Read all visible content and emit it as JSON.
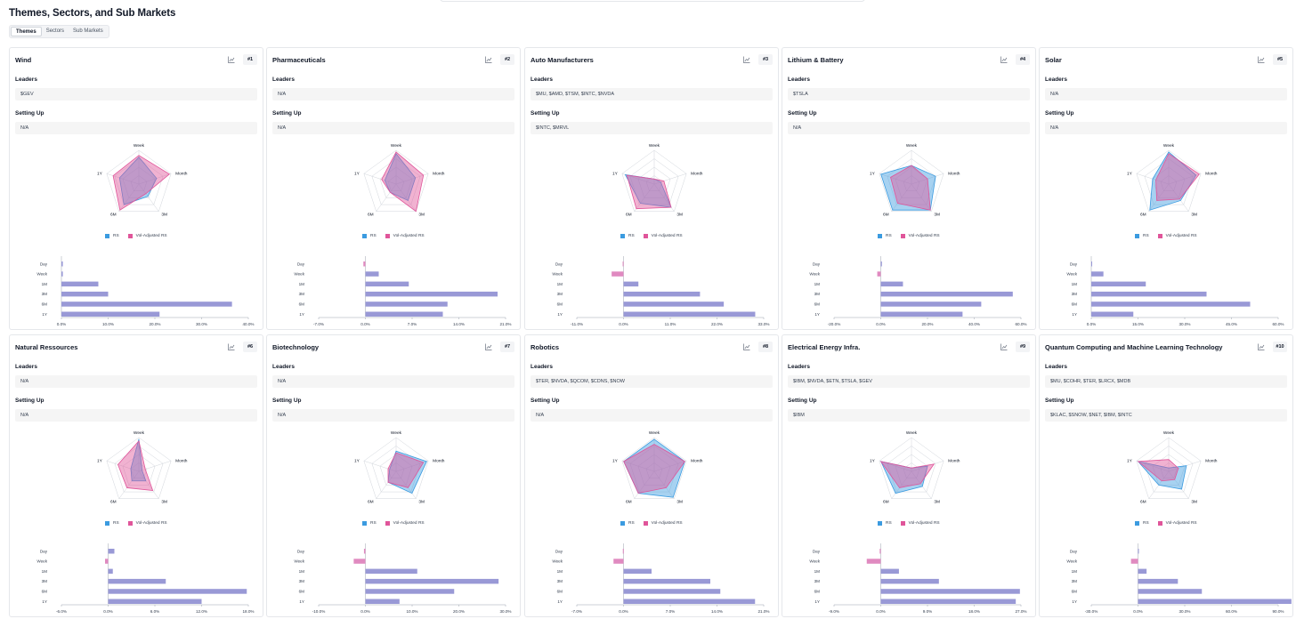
{
  "page": {
    "title": "Themes, Sectors, and Sub Markets",
    "tabs": [
      {
        "label": "Themes",
        "active": true
      },
      {
        "label": "Sectors",
        "active": false
      },
      {
        "label": "Sub Markets",
        "active": false
      }
    ]
  },
  "labels": {
    "leaders": "Leaders",
    "setting_up": "Setting Up",
    "legend_rs": "RS",
    "legend_vol": "Vol-Adjusted RS",
    "radar_axes": [
      "Week",
      "Month",
      "3M",
      "6M",
      "1Y"
    ],
    "bar_rows": [
      "Day",
      "Week",
      "1M",
      "3M",
      "6M",
      "1Y"
    ]
  },
  "colors": {
    "rs": "#3b9be0",
    "vol": "#e0559a",
    "bar_pos": "#9999d6",
    "bar_neg": "#e08ac0",
    "grid": "#d1d5db"
  },
  "themes": [
    {
      "name": "Wind",
      "rank": "#1",
      "leaders": "$GEV",
      "setting_up": "N/A",
      "radar_rs": [
        0.8,
        0.55,
        0.45,
        0.75,
        0.6
      ],
      "radar_vol": [
        0.85,
        0.95,
        0.35,
        0.95,
        0.8
      ],
      "bars": [
        0.3,
        0.3,
        7.9,
        10,
        36.5,
        21
      ],
      "ticks": [
        "0.0%",
        "10.0%",
        "20.0%",
        "30.0%",
        "40.0%"
      ]
    },
    {
      "name": "Pharmaceuticals",
      "rank": "#2",
      "leaders": "N/A",
      "setting_up": "N/A",
      "radar_rs": [
        0.9,
        0.6,
        0.6,
        0.3,
        0.35
      ],
      "radar_vol": [
        0.95,
        0.85,
        1.0,
        0.3,
        0.45
      ],
      "bars": [
        -0.3,
        2,
        6.5,
        19.8,
        12.3,
        11.6
      ],
      "ticks": [
        "-7.0%",
        "0.0%",
        "7.0%",
        "14.0%",
        "21.0%"
      ]
    },
    {
      "name": "Auto Manufacturers",
      "rank": "#3",
      "leaders": "$MU, $AMD, $TSM, $INTC, $NVDA",
      "setting_up": "$INTC, $MRVL",
      "radar_rs": [
        0.15,
        0.2,
        0.85,
        0.7,
        0.9
      ],
      "radar_vol": [
        0.15,
        0.3,
        0.85,
        0.9,
        0.85
      ],
      "bars": [
        -0.2,
        -2.8,
        3.5,
        18,
        23.6,
        31
      ],
      "ticks": [
        "-11.0%",
        "0.0%",
        "11.0%",
        "22.0%",
        "33.0%"
      ]
    },
    {
      "name": "Lithium & Battery",
      "rank": "#4",
      "leaders": "$TSLA",
      "setting_up": "N/A",
      "radar_rs": [
        0.55,
        0.75,
        0.95,
        0.95,
        0.95
      ],
      "radar_vol": [
        0.55,
        0.5,
        0.95,
        0.7,
        0.65
      ],
      "bars": [
        0.5,
        -1.5,
        9.5,
        56.5,
        43,
        35
      ],
      "ticks": [
        "-20.0%",
        "0.0%",
        "20.0%",
        "40.0%",
        "60.0%"
      ]
    },
    {
      "name": "Solar",
      "rank": "#5",
      "leaders": "N/A",
      "setting_up": "N/A",
      "radar_rs": [
        0.95,
        0.85,
        0.6,
        0.95,
        0.5
      ],
      "radar_vol": [
        0.9,
        0.95,
        0.55,
        0.6,
        0.4
      ],
      "bars": [
        0.2,
        3.9,
        17.5,
        37,
        51,
        13.5
      ],
      "ticks": [
        "0.0%",
        "15.0%",
        "30.0%",
        "45.0%",
        "60.0%"
      ]
    },
    {
      "name": "Natural Ressources",
      "rank": "#6",
      "leaders": "N/A",
      "setting_up": "N/A",
      "radar_rs": [
        0.95,
        0.1,
        0.35,
        0.35,
        0.25
      ],
      "radar_vol": [
        0.9,
        0.2,
        0.7,
        0.6,
        0.65
      ],
      "bars": [
        0.8,
        -0.4,
        0.6,
        7.4,
        17.8,
        12
      ],
      "ticks": [
        "-6.0%",
        "0.0%",
        "6.0%",
        "12.0%",
        "18.0%"
      ]
    },
    {
      "name": "Biotechnology",
      "rank": "#7",
      "leaders": "N/A",
      "setting_up": "N/A",
      "radar_rs": [
        0.6,
        0.95,
        0.8,
        0.4,
        0.2
      ],
      "radar_vol": [
        0.55,
        0.85,
        0.6,
        0.4,
        0.25
      ],
      "bars": [
        -0.3,
        -2.5,
        11.1,
        28.5,
        19,
        7.3
      ],
      "ticks": [
        "-10.0%",
        "0.0%",
        "10.0%",
        "20.0%",
        "30.0%"
      ]
    },
    {
      "name": "Robotics",
      "rank": "#8",
      "leaders": "$TER, $NVDA, $QCOM, $CDNS, $NOW",
      "setting_up": "N/A",
      "radar_rs": [
        0.95,
        0.95,
        0.95,
        0.8,
        0.95
      ],
      "radar_vol": [
        0.8,
        0.95,
        0.6,
        0.8,
        0.95
      ],
      "bars": [
        -0.1,
        -1.5,
        4.2,
        13,
        14.5,
        19.7
      ],
      "ticks": [
        "-7.0%",
        "0.0%",
        "7.0%",
        "14.0%",
        "21.0%"
      ]
    },
    {
      "name": "Electrical Energy Infra.",
      "rank": "#9",
      "leaders": "$IBM, $NVDA, $ETN, $TSLA, $GEV",
      "setting_up": "$IBM",
      "radar_rs": [
        0.1,
        0.5,
        0.55,
        0.8,
        0.95
      ],
      "radar_vol": [
        0.1,
        0.7,
        0.45,
        0.6,
        0.95
      ],
      "bars": [
        -0.2,
        -2.7,
        3.5,
        11.2,
        26.8,
        26
      ],
      "ticks": [
        "-9.0%",
        "0.0%",
        "9.0%",
        "18.0%",
        "27.0%"
      ]
    },
    {
      "name": "Quantum Computing and Machine Learning Technology",
      "rank": "#10",
      "leaders": "$MU, $COHR, $TER, $LRCX, $MDB",
      "setting_up": "$KLAC, $SNOW, $NET, $IBM, $INTC",
      "radar_rs": [
        0.1,
        0.55,
        0.65,
        0.5,
        0.95
      ],
      "radar_vol": [
        0.35,
        0.3,
        0.3,
        0.35,
        0.95
      ],
      "bars": [
        0.2,
        -4.5,
        5.5,
        25.6,
        41,
        98.5
      ],
      "ticks": [
        "-30.0%",
        "0.0%",
        "30.0%",
        "60.0%",
        "90.0%"
      ]
    }
  ]
}
